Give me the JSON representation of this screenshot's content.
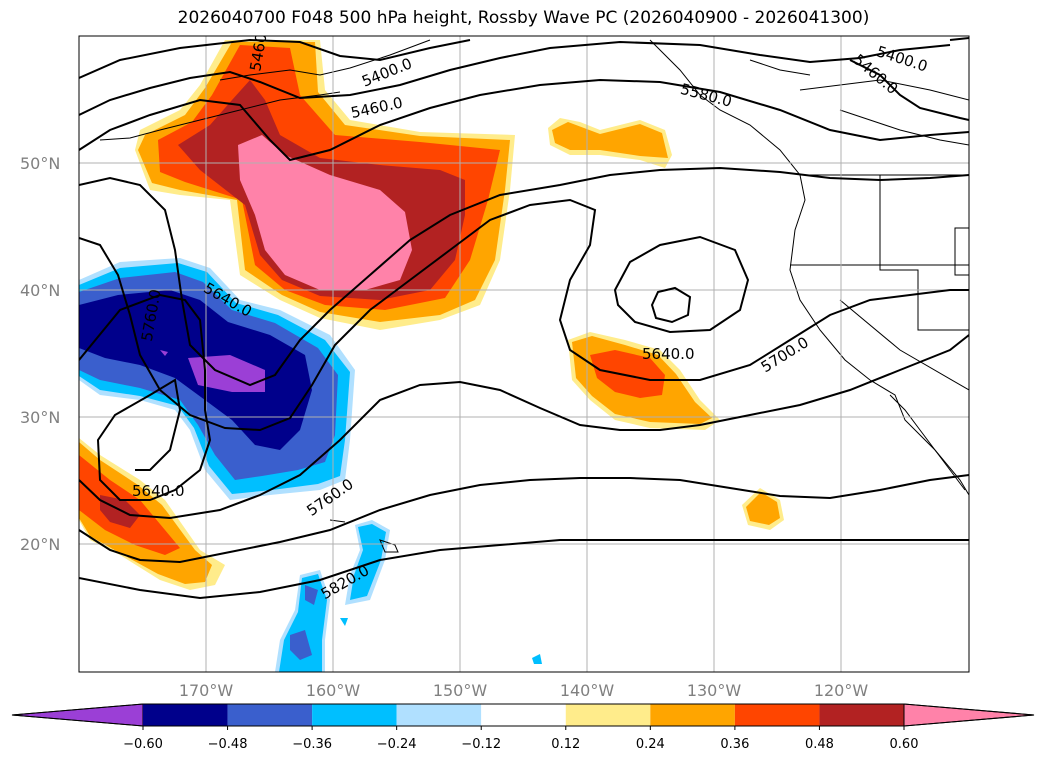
{
  "title": "2026040700 F048 500 hPa height, Rossby Wave PC (2026040900 - 2026041300)",
  "map": {
    "lat_labels": [
      "50°N",
      "40°N",
      "30°N",
      "20°N"
    ],
    "lon_labels": [
      "170°W",
      "160°W",
      "150°W",
      "140°W",
      "130°W",
      "120°W"
    ],
    "contour_labels": [
      "5400.0",
      "5460.0",
      "5460.0",
      "5400.0",
      "5460.0",
      "5580.0",
      "5640.0",
      "5760.0",
      "5640.0",
      "5760.0",
      "5820.0",
      "5640.0",
      "5700.0"
    ],
    "colors": {
      "pink": "#ff82a9",
      "darkred": "#b22222",
      "orangered": "#ff4500",
      "orange": "#ffa500",
      "yellow": "#ffec8b",
      "skyblue": "#b0e0ff",
      "deepskyblue": "#00bfff",
      "royalblue": "#3a5fcd",
      "navy": "#00008b",
      "purple": "#9b3fd6"
    }
  },
  "colorbar": {
    "ticks": [
      "−0.60",
      "−0.48",
      "−0.36",
      "−0.24",
      "−0.12",
      "0.12",
      "0.24",
      "0.36",
      "0.48",
      "0.60"
    ],
    "colors": [
      "#9b3fd6",
      "#00008b",
      "#3a5fcd",
      "#00bfff",
      "#b0e0ff",
      "#ffffff",
      "#ffec8b",
      "#ffa500",
      "#ff4500",
      "#b22222",
      "#ff82a9"
    ]
  }
}
